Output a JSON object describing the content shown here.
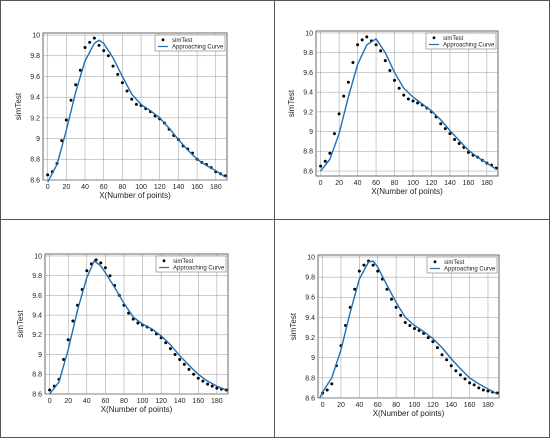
{
  "chart_data": [
    {
      "type": "scatter",
      "xlabel": "X(Number of points)",
      "ylabel": "simTest",
      "xticks": [
        0,
        20,
        40,
        60,
        80,
        100,
        120,
        140,
        160,
        180
      ],
      "yticks": [
        8.6,
        8.8,
        9,
        9.2,
        9.4,
        9.6,
        9.8,
        10
      ],
      "xlim": [
        -5,
        192
      ],
      "ylim": [
        8.6,
        10.02
      ],
      "grid": true,
      "legend": "top-right",
      "colors": {
        "points": "#000000",
        "curve": "#1f6fb4"
      },
      "series": [
        {
          "name": "simTest",
          "kind": "points",
          "x": [
            0,
            5,
            10,
            15,
            20,
            25,
            30,
            35,
            40,
            45,
            50,
            55,
            60,
            65,
            70,
            75,
            80,
            85,
            90,
            95,
            100,
            105,
            110,
            115,
            120,
            125,
            130,
            135,
            140,
            145,
            150,
            155,
            160,
            165,
            170,
            175,
            180,
            185,
            190
          ],
          "y": [
            8.65,
            8.68,
            8.76,
            8.98,
            9.18,
            9.37,
            9.52,
            9.66,
            9.88,
            9.93,
            9.97,
            9.9,
            9.85,
            9.8,
            9.7,
            9.62,
            9.54,
            9.46,
            9.38,
            9.33,
            9.32,
            9.29,
            9.26,
            9.22,
            9.19,
            9.15,
            9.09,
            9.03,
            8.99,
            8.93,
            8.9,
            8.86,
            8.8,
            8.77,
            8.75,
            8.72,
            8.68,
            8.66,
            8.64
          ]
        },
        {
          "name": "Approaching Curve",
          "kind": "line",
          "x": [
            0,
            10,
            20,
            30,
            40,
            50,
            55,
            60,
            70,
            80,
            90,
            100,
            110,
            120,
            130,
            140,
            150,
            160,
            170,
            180,
            190
          ],
          "y": [
            8.58,
            8.75,
            9.08,
            9.45,
            9.75,
            9.92,
            9.95,
            9.92,
            9.78,
            9.6,
            9.43,
            9.33,
            9.27,
            9.2,
            9.1,
            8.99,
            8.89,
            8.8,
            8.74,
            8.69,
            8.63
          ]
        }
      ]
    },
    {
      "type": "scatter",
      "xlabel": "X(Number of points)",
      "ylabel": "simTest",
      "xticks": [
        0,
        20,
        40,
        60,
        80,
        100,
        120,
        140,
        160,
        180
      ],
      "yticks": [
        8.6,
        8.8,
        9,
        9.2,
        9.4,
        9.6,
        9.8,
        10
      ],
      "xlim": [
        -5,
        192
      ],
      "ylim": [
        8.55,
        10.02
      ],
      "grid": true,
      "legend": "top-right",
      "colors": {
        "points": "#000000",
        "curve": "#1f6fb4"
      },
      "series": [
        {
          "name": "simTest",
          "kind": "points",
          "x": [
            0,
            5,
            10,
            15,
            20,
            25,
            30,
            35,
            40,
            45,
            50,
            55,
            60,
            65,
            70,
            75,
            80,
            85,
            90,
            95,
            100,
            105,
            110,
            115,
            120,
            125,
            130,
            135,
            140,
            145,
            150,
            155,
            160,
            165,
            170,
            175,
            180,
            185,
            190
          ],
          "y": [
            8.65,
            8.7,
            8.78,
            8.98,
            9.18,
            9.36,
            9.5,
            9.7,
            9.88,
            9.93,
            9.96,
            9.92,
            9.88,
            9.82,
            9.72,
            9.62,
            9.52,
            9.44,
            9.37,
            9.33,
            9.31,
            9.29,
            9.27,
            9.24,
            9.2,
            9.15,
            9.08,
            9.03,
            8.98,
            8.92,
            8.88,
            8.84,
            8.79,
            8.76,
            8.74,
            8.71,
            8.68,
            8.66,
            8.63
          ]
        },
        {
          "name": "Approaching Curve",
          "kind": "line",
          "x": [
            0,
            10,
            20,
            30,
            40,
            50,
            60,
            70,
            80,
            90,
            100,
            110,
            120,
            130,
            140,
            150,
            160,
            170,
            180,
            190
          ],
          "y": [
            8.6,
            8.72,
            8.98,
            9.35,
            9.68,
            9.88,
            9.94,
            9.8,
            9.6,
            9.44,
            9.35,
            9.28,
            9.21,
            9.12,
            9.01,
            8.91,
            8.81,
            8.74,
            8.68,
            8.62
          ]
        }
      ]
    },
    {
      "type": "scatter",
      "xlabel": "X(Number of points)",
      "ylabel": "simTest",
      "xticks": [
        0,
        20,
        40,
        60,
        80,
        100,
        120,
        140,
        160,
        180
      ],
      "yticks": [
        8.6,
        8.8,
        9,
        9.2,
        9.4,
        9.6,
        9.8,
        10
      ],
      "xlim": [
        -5,
        192
      ],
      "ylim": [
        8.6,
        10.02
      ],
      "grid": true,
      "legend": "top-right",
      "colors": {
        "points": "#000000",
        "curve": "#1f6fb4"
      },
      "series": [
        {
          "name": "simTest",
          "kind": "points",
          "x": [
            0,
            5,
            10,
            15,
            20,
            25,
            30,
            35,
            40,
            45,
            50,
            55,
            60,
            65,
            70,
            75,
            80,
            85,
            90,
            95,
            100,
            105,
            110,
            115,
            120,
            125,
            130,
            135,
            140,
            145,
            150,
            155,
            160,
            165,
            170,
            175,
            180,
            185,
            190
          ],
          "y": [
            8.64,
            8.68,
            8.75,
            8.95,
            9.15,
            9.34,
            9.5,
            9.66,
            9.85,
            9.92,
            9.96,
            9.93,
            9.88,
            9.8,
            9.7,
            9.6,
            9.5,
            9.42,
            9.36,
            9.32,
            9.3,
            9.28,
            9.25,
            9.21,
            9.17,
            9.12,
            9.06,
            9.0,
            8.95,
            8.9,
            8.85,
            8.8,
            8.76,
            8.73,
            8.7,
            8.68,
            8.66,
            8.65,
            8.64
          ]
        },
        {
          "name": "Approaching Curve",
          "kind": "line",
          "x": [
            0,
            10,
            20,
            30,
            40,
            48,
            55,
            60,
            70,
            80,
            90,
            100,
            110,
            120,
            130,
            140,
            150,
            160,
            170,
            180,
            190
          ],
          "y": [
            8.6,
            8.72,
            9.05,
            9.45,
            9.78,
            9.95,
            9.9,
            9.83,
            9.68,
            9.52,
            9.38,
            9.31,
            9.26,
            9.19,
            9.1,
            8.99,
            8.89,
            8.8,
            8.73,
            8.68,
            8.64
          ]
        }
      ]
    },
    {
      "type": "scatter",
      "xlabel": "X(Number of points)",
      "ylabel": "simTest",
      "xticks": [
        0,
        20,
        40,
        60,
        80,
        100,
        120,
        140,
        160,
        180
      ],
      "yticks": [
        8.6,
        8.8,
        9,
        9.2,
        9.4,
        9.6,
        9.8,
        10
      ],
      "xlim": [
        -5,
        192
      ],
      "ylim": [
        8.6,
        10.02
      ],
      "grid": true,
      "legend": "top-right",
      "colors": {
        "points": "#000000",
        "curve": "#1f6fb4"
      },
      "series": [
        {
          "name": "simTest",
          "kind": "points",
          "x": [
            0,
            5,
            10,
            15,
            20,
            25,
            30,
            35,
            40,
            45,
            50,
            55,
            60,
            65,
            70,
            75,
            80,
            85,
            90,
            95,
            100,
            105,
            110,
            115,
            120,
            125,
            130,
            135,
            140,
            145,
            150,
            155,
            160,
            165,
            170,
            175,
            180,
            185,
            190
          ],
          "y": [
            8.65,
            8.68,
            8.74,
            8.92,
            9.12,
            9.32,
            9.5,
            9.68,
            9.86,
            9.92,
            9.96,
            9.92,
            9.86,
            9.78,
            9.68,
            9.58,
            9.5,
            9.42,
            9.35,
            9.32,
            9.29,
            9.27,
            9.24,
            9.2,
            9.16,
            9.1,
            9.03,
            8.98,
            8.92,
            8.87,
            8.83,
            8.79,
            8.75,
            8.73,
            8.7,
            8.68,
            8.67,
            8.66,
            8.65
          ]
        },
        {
          "name": "Approaching Curve",
          "kind": "line",
          "x": [
            -3,
            0,
            10,
            20,
            30,
            40,
            50,
            55,
            60,
            70,
            80,
            90,
            100,
            110,
            120,
            130,
            140,
            150,
            160,
            170,
            180,
            190
          ],
          "y": [
            8.6,
            8.66,
            8.8,
            9.08,
            9.45,
            9.78,
            9.95,
            9.96,
            9.9,
            9.72,
            9.55,
            9.4,
            9.32,
            9.26,
            9.19,
            9.1,
            8.99,
            8.89,
            8.8,
            8.74,
            8.69,
            8.64
          ]
        }
      ]
    }
  ]
}
